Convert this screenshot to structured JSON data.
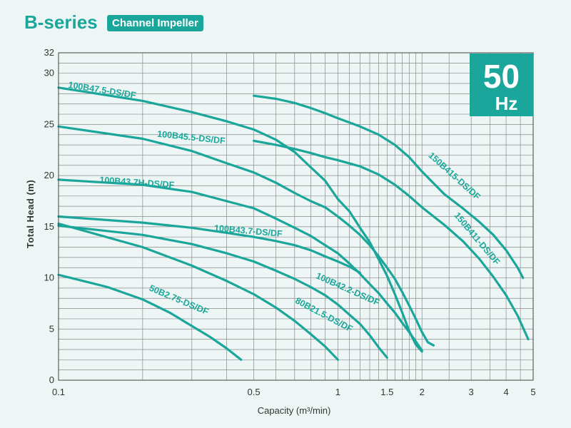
{
  "header": {
    "title": "B-series",
    "badge": "Channel Impeller"
  },
  "frequency": {
    "value": "50",
    "unit": "Hz"
  },
  "colors": {
    "curve": "#1aa69a",
    "background": "#edf6f5",
    "grid": "#8a8a8a"
  },
  "chart_data": {
    "type": "line",
    "title": "",
    "xlabel": "Capacity (m³/min)",
    "ylabel": "Total Head (m)",
    "x_scale": "log",
    "xlim": [
      0.1,
      5
    ],
    "ylim": [
      0,
      32
    ],
    "x_ticks": [
      0.1,
      0.5,
      1,
      1.5,
      2,
      3,
      4,
      5
    ],
    "x_tick_labels": [
      "0.1",
      "0.5",
      "1",
      "1.5",
      "2",
      "3",
      "4",
      "5"
    ],
    "y_ticks": [
      0,
      5,
      10,
      15,
      20,
      25,
      30,
      32
    ],
    "y_tick_labels": [
      "0",
      "5",
      "10",
      "15",
      "20",
      "25",
      "30",
      "32"
    ],
    "grid": true,
    "series": [
      {
        "name": "100B47.5-DS/DF",
        "x": [
          0.1,
          0.2,
          0.3,
          0.4,
          0.5,
          0.6,
          0.7,
          0.8,
          0.9,
          1.0,
          1.1,
          1.2,
          1.3,
          1.4,
          1.5,
          1.6,
          1.7,
          1.8,
          1.9,
          2.0
        ],
        "y": [
          28.6,
          27.3,
          26.2,
          25.3,
          24.5,
          23.5,
          22.3,
          20.8,
          19.5,
          17.7,
          16.5,
          14.9,
          13.5,
          11.8,
          10.2,
          8.4,
          6.6,
          4.8,
          3.5,
          2.8
        ]
      },
      {
        "name": "100B45.5-DS/DF",
        "x": [
          0.1,
          0.2,
          0.3,
          0.4,
          0.5,
          0.6,
          0.7,
          0.8,
          0.9,
          1.0,
          1.1,
          1.2,
          1.3,
          1.4,
          1.5,
          1.6,
          1.7,
          1.8,
          1.9,
          2.0,
          2.1,
          2.2
        ],
        "y": [
          24.8,
          23.6,
          22.4,
          21.2,
          20.3,
          19.3,
          18.3,
          17.5,
          16.9,
          16.0,
          15.1,
          14.2,
          13.2,
          12.1,
          11.0,
          9.9,
          8.6,
          7.3,
          6.0,
          4.7,
          3.7,
          3.4
        ]
      },
      {
        "name": "100B43.7H-DS/DF",
        "x": [
          0.1,
          0.2,
          0.3,
          0.4,
          0.5,
          0.6,
          0.7,
          0.8,
          0.9,
          1.0,
          1.1,
          1.2,
          1.3,
          1.4,
          1.5,
          1.6,
          1.7,
          1.8,
          1.9,
          2.0
        ],
        "y": [
          19.6,
          19.1,
          18.4,
          17.5,
          16.8,
          15.8,
          14.9,
          14.1,
          13.2,
          12.4,
          11.4,
          10.4,
          9.4,
          8.5,
          7.5,
          6.6,
          5.6,
          4.7,
          3.8,
          2.9
        ]
      },
      {
        "name": "100B43.7-DS/DF",
        "x": [
          0.1,
          0.2,
          0.3,
          0.4,
          0.5,
          0.6,
          0.7,
          0.8,
          0.9,
          1.0,
          1.1,
          1.2
        ],
        "y": [
          16.0,
          15.4,
          14.9,
          14.4,
          14.0,
          13.6,
          13.2,
          12.7,
          12.1,
          11.6,
          11.1,
          10.5
        ]
      },
      {
        "name": "100B42.2-DS/DF",
        "x": [
          0.1,
          0.2,
          0.3,
          0.4,
          0.5,
          0.6,
          0.7,
          0.8,
          0.9,
          1.0,
          1.1,
          1.2,
          1.3,
          1.4,
          1.5
        ],
        "y": [
          15.1,
          14.2,
          13.3,
          12.4,
          11.6,
          10.7,
          9.9,
          9.1,
          8.3,
          7.4,
          6.4,
          5.5,
          4.4,
          3.2,
          2.2
        ]
      },
      {
        "name": "80B21.5-DS/DF",
        "x": [
          0.1,
          0.2,
          0.3,
          0.4,
          0.5,
          0.6,
          0.7,
          0.8,
          0.9,
          1.0
        ],
        "y": [
          15.3,
          13.0,
          11.2,
          9.7,
          8.4,
          7.1,
          5.8,
          4.5,
          3.3,
          2.0
        ]
      },
      {
        "name": "50B2.75-DS/DF",
        "x": [
          0.1,
          0.15,
          0.2,
          0.25,
          0.3,
          0.35,
          0.4,
          0.45
        ],
        "y": [
          10.3,
          9.1,
          7.9,
          6.6,
          5.3,
          4.2,
          3.1,
          2.0
        ]
      },
      {
        "name": "150B415-DS/DF",
        "x": [
          0.5,
          0.6,
          0.7,
          0.8,
          0.9,
          1.0,
          1.2,
          1.4,
          1.6,
          1.8,
          2.0,
          2.4,
          2.8,
          3.2,
          3.6,
          4.0,
          4.4,
          4.6
        ],
        "y": [
          27.8,
          27.5,
          27.1,
          26.6,
          26.1,
          25.6,
          24.8,
          24.0,
          23.0,
          21.8,
          20.4,
          18.2,
          16.8,
          15.5,
          14.2,
          12.7,
          11.0,
          10.0
        ]
      },
      {
        "name": "150B411-DS/DF",
        "x": [
          0.5,
          0.6,
          0.7,
          0.8,
          0.9,
          1.0,
          1.2,
          1.4,
          1.6,
          1.8,
          2.0,
          2.4,
          2.8,
          3.2,
          3.6,
          4.0,
          4.4,
          4.8
        ],
        "y": [
          23.4,
          23.0,
          22.6,
          22.2,
          21.8,
          21.5,
          20.9,
          20.1,
          19.1,
          18.0,
          16.9,
          15.2,
          13.6,
          11.9,
          10.1,
          8.3,
          6.3,
          4.0
        ]
      }
    ],
    "curve_labels": [
      {
        "text": "100B47.5-DS/DF",
        "series": 0
      },
      {
        "text": "100B45.5-DS/DF",
        "series": 1
      },
      {
        "text": "100B43.7H-DS/DF",
        "series": 2
      },
      {
        "text": "100B43.7-DS/DF",
        "series": 3
      },
      {
        "text": "100B42.2-DS/DF",
        "series": 4
      },
      {
        "text": "80B21.5-DS/DF",
        "series": 5
      },
      {
        "text": "50B2.75-DS/DF",
        "series": 6
      },
      {
        "text": "150B415-DS/DF",
        "series": 7
      },
      {
        "text": "150B411-DS/DF",
        "series": 8
      }
    ]
  }
}
